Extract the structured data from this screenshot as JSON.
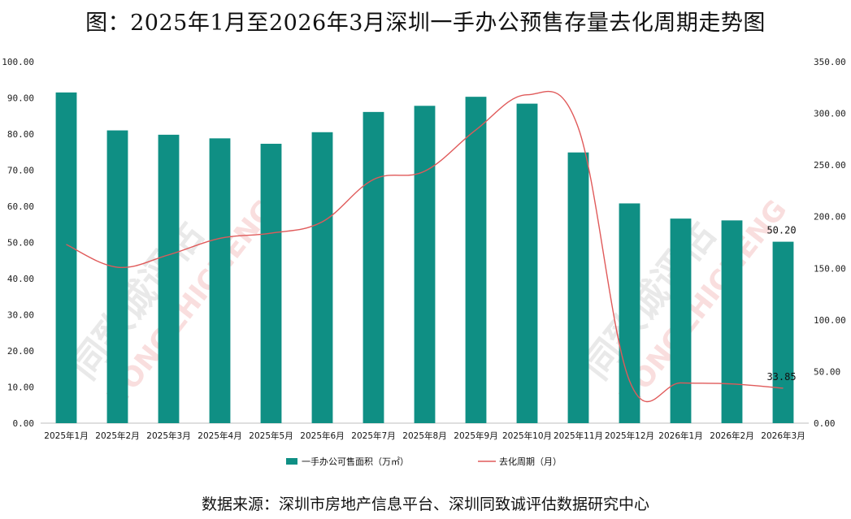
{
  "title": "图：2025年1月至2026年3月深圳一手办公预售存量去化周期走势图",
  "source": "数据来源：深圳市房地产信息平台、深圳同致诚评估数据研究中心",
  "watermark": {
    "text": "同致诚评估",
    "text_en": "TONGZHICHENG"
  },
  "chart_data": {
    "type": "bar",
    "categories": [
      "2025年1月",
      "2025年2月",
      "2025年3月",
      "2025年4月",
      "2025年5月",
      "2025年6月",
      "2025年7月",
      "2025年8月",
      "2025年9月",
      "2025年10月",
      "2025年11月",
      "2025年12月",
      "2026年1月",
      "2026年2月",
      "2026年3月"
    ],
    "series": [
      {
        "name": "一手办公可售面积（万㎡）",
        "type": "bar",
        "axis": "left",
        "color": "#0f8f84",
        "values": [
          91.5,
          81.0,
          79.8,
          78.8,
          77.3,
          80.5,
          86.1,
          87.8,
          90.3,
          88.4,
          74.9,
          60.8,
          56.6,
          56.1,
          50.2
        ]
      },
      {
        "name": "去化周期（月）",
        "type": "line",
        "axis": "right",
        "color": "#e05a5a",
        "values": [
          173,
          151,
          163,
          179,
          184,
          195,
          236,
          244,
          284,
          318,
          286,
          41,
          39,
          38,
          33.85
        ]
      }
    ],
    "y_left": {
      "min": 0,
      "max": 100,
      "step": 10,
      "tick_labels": [
        "0.00",
        "10.00",
        "20.00",
        "30.00",
        "40.00",
        "50.00",
        "60.00",
        "70.00",
        "80.00",
        "90.00",
        "100.00"
      ]
    },
    "y_right": {
      "min": 0,
      "max": 350,
      "step": 50,
      "tick_labels": [
        "0.00",
        "50.00",
        "100.00",
        "150.00",
        "200.00",
        "250.00",
        "300.00",
        "350.00"
      ]
    },
    "data_labels": [
      {
        "series": 0,
        "index": 14,
        "text": "50.20"
      },
      {
        "series": 1,
        "index": 14,
        "text": "33.85"
      }
    ],
    "legend": {
      "position": "bottom",
      "items": [
        "一手办公可售面积（万㎡）",
        "去化周期（月）"
      ]
    },
    "grid": false
  }
}
